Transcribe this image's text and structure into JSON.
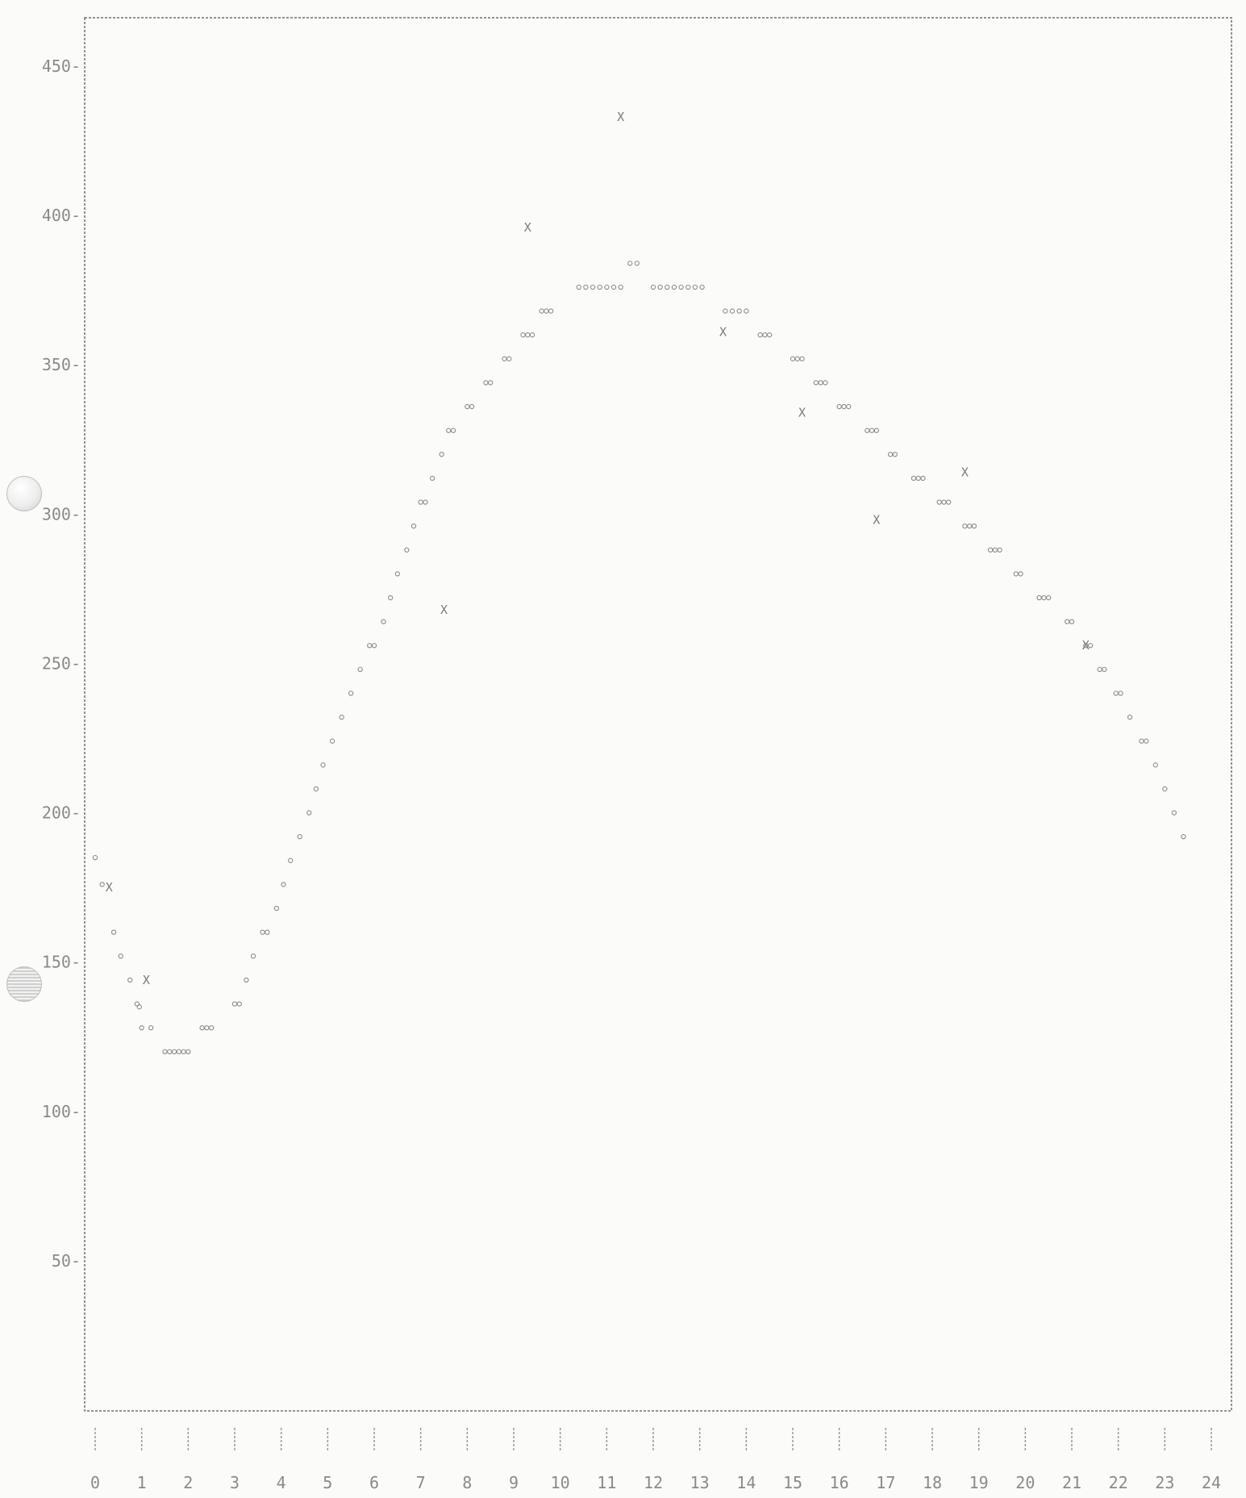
{
  "chart_data": {
    "type": "scatter",
    "title": "",
    "xlabel": "",
    "ylabel": "",
    "xlim": [
      0,
      24
    ],
    "ylim": [
      0,
      465
    ],
    "grid": false,
    "y_ticks": [
      50,
      100,
      150,
      200,
      250,
      300,
      350,
      400,
      450
    ],
    "x_ticks": [
      0,
      1,
      2,
      3,
      4,
      5,
      6,
      7,
      8,
      9,
      10,
      11,
      12,
      13,
      14,
      15,
      16,
      17,
      18,
      19,
      20,
      21,
      22,
      23,
      24
    ],
    "y_tick_labels": [
      "50-",
      "100-",
      "150-",
      "200-",
      "250-",
      "300-",
      "350-",
      "400-",
      "450-"
    ],
    "x_tick_labels": [
      "0",
      "1",
      "2",
      "3",
      "4",
      "5",
      "6",
      "7",
      "8",
      "9",
      "10",
      "11",
      "12",
      "13",
      "14",
      "15",
      "16",
      "17",
      "18",
      "19",
      "20",
      "21",
      "22",
      "23",
      "24"
    ],
    "series": [
      {
        "marker": "o",
        "points": [
          [
            0.0,
            185
          ],
          [
            0.15,
            176
          ],
          [
            0.4,
            160
          ],
          [
            0.55,
            152
          ],
          [
            0.75,
            144
          ],
          [
            0.9,
            136
          ],
          [
            0.95,
            135
          ],
          [
            1.0,
            128
          ],
          [
            1.2,
            128
          ],
          [
            1.5,
            120
          ],
          [
            1.6,
            120
          ],
          [
            1.7,
            120
          ],
          [
            1.8,
            120
          ],
          [
            1.9,
            120
          ],
          [
            2.0,
            120
          ],
          [
            2.3,
            128
          ],
          [
            2.4,
            128
          ],
          [
            2.5,
            128
          ],
          [
            3.0,
            136
          ],
          [
            3.1,
            136
          ],
          [
            3.25,
            144
          ],
          [
            3.4,
            152
          ],
          [
            3.6,
            160
          ],
          [
            3.7,
            160
          ],
          [
            3.9,
            168
          ],
          [
            4.05,
            176
          ],
          [
            4.2,
            184
          ],
          [
            4.4,
            192
          ],
          [
            4.6,
            200
          ],
          [
            4.75,
            208
          ],
          [
            4.9,
            216
          ],
          [
            5.1,
            224
          ],
          [
            5.3,
            232
          ],
          [
            5.5,
            240
          ],
          [
            5.7,
            248
          ],
          [
            5.9,
            256
          ],
          [
            6.0,
            256
          ],
          [
            6.2,
            264
          ],
          [
            6.35,
            272
          ],
          [
            6.5,
            280
          ],
          [
            6.7,
            288
          ],
          [
            6.85,
            296
          ],
          [
            7.0,
            304
          ],
          [
            7.1,
            304
          ],
          [
            7.25,
            312
          ],
          [
            7.45,
            320
          ],
          [
            7.6,
            328
          ],
          [
            7.7,
            328
          ],
          [
            8.0,
            336
          ],
          [
            8.1,
            336
          ],
          [
            8.4,
            344
          ],
          [
            8.5,
            344
          ],
          [
            8.8,
            352
          ],
          [
            8.9,
            352
          ],
          [
            9.2,
            360
          ],
          [
            9.3,
            360
          ],
          [
            9.4,
            360
          ],
          [
            9.6,
            368
          ],
          [
            9.7,
            368
          ],
          [
            9.8,
            368
          ],
          [
            10.4,
            376
          ],
          [
            10.55,
            376
          ],
          [
            10.7,
            376
          ],
          [
            10.85,
            376
          ],
          [
            11.0,
            376
          ],
          [
            11.15,
            376
          ],
          [
            11.3,
            376
          ],
          [
            11.5,
            384
          ],
          [
            11.65,
            384
          ],
          [
            12.0,
            376
          ],
          [
            12.15,
            376
          ],
          [
            12.3,
            376
          ],
          [
            12.45,
            376
          ],
          [
            12.6,
            376
          ],
          [
            12.75,
            376
          ],
          [
            12.9,
            376
          ],
          [
            13.05,
            376
          ],
          [
            13.55,
            368
          ],
          [
            13.7,
            368
          ],
          [
            13.85,
            368
          ],
          [
            14.0,
            368
          ],
          [
            14.3,
            360
          ],
          [
            14.4,
            360
          ],
          [
            14.5,
            360
          ],
          [
            15.0,
            352
          ],
          [
            15.1,
            352
          ],
          [
            15.2,
            352
          ],
          [
            15.5,
            344
          ],
          [
            15.6,
            344
          ],
          [
            15.7,
            344
          ],
          [
            16.0,
            336
          ],
          [
            16.1,
            336
          ],
          [
            16.2,
            336
          ],
          [
            16.6,
            328
          ],
          [
            16.7,
            328
          ],
          [
            16.8,
            328
          ],
          [
            17.1,
            320
          ],
          [
            17.2,
            320
          ],
          [
            17.6,
            312
          ],
          [
            17.7,
            312
          ],
          [
            17.8,
            312
          ],
          [
            18.15,
            304
          ],
          [
            18.25,
            304
          ],
          [
            18.35,
            304
          ],
          [
            18.7,
            296
          ],
          [
            18.8,
            296
          ],
          [
            18.9,
            296
          ],
          [
            19.25,
            288
          ],
          [
            19.35,
            288
          ],
          [
            19.45,
            288
          ],
          [
            19.8,
            280
          ],
          [
            19.9,
            280
          ],
          [
            20.3,
            272
          ],
          [
            20.4,
            272
          ],
          [
            20.5,
            272
          ],
          [
            20.9,
            264
          ],
          [
            21.0,
            264
          ],
          [
            21.3,
            256
          ],
          [
            21.4,
            256
          ],
          [
            21.6,
            248
          ],
          [
            21.7,
            248
          ],
          [
            21.95,
            240
          ],
          [
            22.05,
            240
          ],
          [
            22.25,
            232
          ],
          [
            22.5,
            224
          ],
          [
            22.6,
            224
          ],
          [
            22.8,
            216
          ],
          [
            23.0,
            208
          ],
          [
            23.2,
            200
          ],
          [
            23.4,
            192
          ]
        ]
      },
      {
        "marker": "X",
        "points": [
          [
            0.3,
            175
          ],
          [
            1.1,
            144
          ],
          [
            9.3,
            396
          ],
          [
            11.3,
            433
          ],
          [
            7.5,
            268
          ],
          [
            13.5,
            361
          ],
          [
            15.2,
            334
          ],
          [
            16.8,
            298
          ],
          [
            18.7,
            314
          ],
          [
            21.3,
            256
          ]
        ]
      }
    ]
  }
}
